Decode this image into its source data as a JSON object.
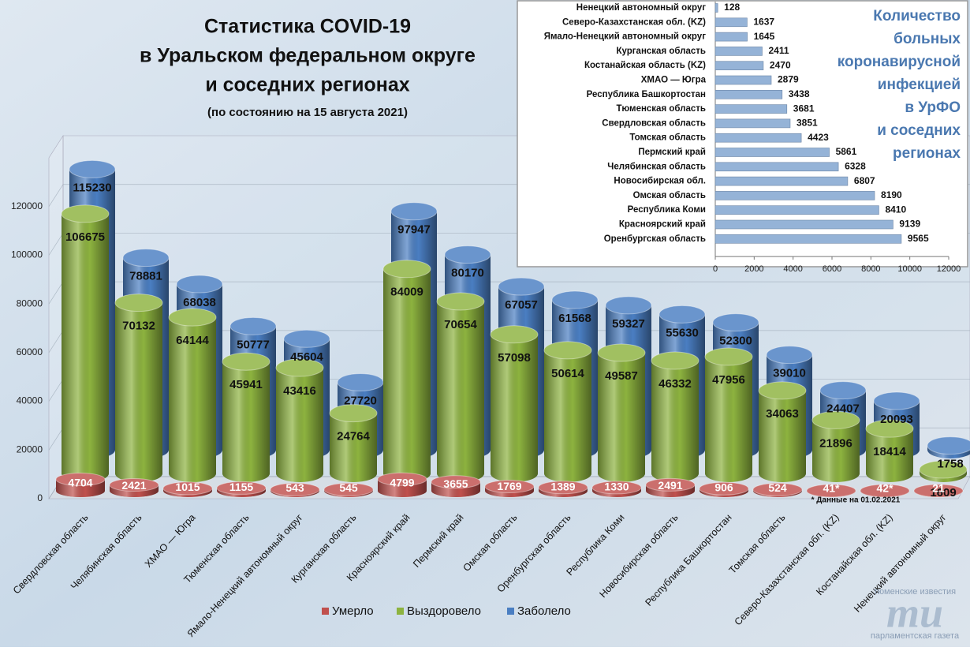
{
  "chart_data": [
    {
      "type": "bar",
      "title": [
        "Статистика COVID-19",
        "в Уральском федеральном округе",
        "и соседних регионах"
      ],
      "subtitle": "(по состоянию на 15 августа 2021)",
      "categories": [
        "Свердловская область",
        "Челябинская область",
        "ХМАО — Югра",
        "Тюменская область",
        "Ямало-Ненецкий автономный округ",
        "Курганская область",
        "Красноярский край",
        "Пермский край",
        "Омская область",
        "Оренбургская область",
        "Республика Коми",
        "Новосибирская область",
        "Республика Башкортостан",
        "Томская область",
        "Северо-Казахстанская обл. (KZ)",
        "Костанайская обл. (KZ)",
        "Ненецкий автономный округ"
      ],
      "series": [
        {
          "name": "Умерло",
          "color": "#c0504d",
          "values": [
            4704,
            2421,
            1015,
            1155,
            543,
            545,
            4799,
            3655,
            1769,
            1389,
            1330,
            2491,
            906,
            524,
            41,
            42,
            21
          ],
          "value_labels": [
            "4704",
            "2421",
            "1015",
            "1155",
            "543",
            "545",
            "4799",
            "3655",
            "1769",
            "1389",
            "1330",
            "2491",
            "906",
            "524",
            "41*",
            "42*",
            "21"
          ]
        },
        {
          "name": "Выздоровело",
          "color": "#8db33f",
          "values": [
            106675,
            70132,
            64144,
            45941,
            43416,
            24764,
            84009,
            70654,
            57098,
            50614,
            49587,
            46332,
            47956,
            34063,
            21896,
            18414,
            1609
          ]
        },
        {
          "name": "Заболело",
          "color": "#4a7ec2",
          "values": [
            115230,
            78881,
            68038,
            50777,
            45604,
            27720,
            97947,
            80170,
            67057,
            61568,
            59327,
            55630,
            52300,
            39010,
            24407,
            20093,
            1758
          ]
        }
      ],
      "ylim": [
        0,
        140000
      ],
      "yticks": [
        0,
        20000,
        40000,
        60000,
        80000,
        100000,
        120000
      ],
      "annotation": "* Данные на 01.02.2021"
    },
    {
      "type": "barh",
      "title": [
        "Количество",
        "больных",
        "коронавирусной",
        "инфекцией",
        "в УрФО",
        "и соседних",
        "регионах"
      ],
      "categories": [
        "Ненецкий автономный округ",
        "Северо-Казахстанская обл. (KZ)",
        "Ямало-Ненецкий автономный округ",
        "Курганская область",
        "Костанайская область (KZ)",
        "ХМАО — Югра",
        "Республика Башкортостан",
        "Тюменская область",
        "Свердловская область",
        "Томская область",
        "Пермский край",
        "Челябинская область",
        "Новосибирская обл.",
        "Омская область",
        "Республика Коми",
        "Красноярский край",
        "Оренбургская область"
      ],
      "values": [
        128,
        1637,
        1645,
        2411,
        2470,
        2879,
        3438,
        3681,
        3851,
        4423,
        5861,
        6328,
        6807,
        8190,
        8410,
        9139,
        9565
      ],
      "color": "#95b3d7",
      "xlim": [
        0,
        12000
      ],
      "xticks": [
        0,
        2000,
        4000,
        6000,
        8000,
        10000,
        12000
      ]
    }
  ],
  "logo": {
    "top": "тюменские известия",
    "mark": "ти",
    "bottom": "парламентская газета"
  }
}
